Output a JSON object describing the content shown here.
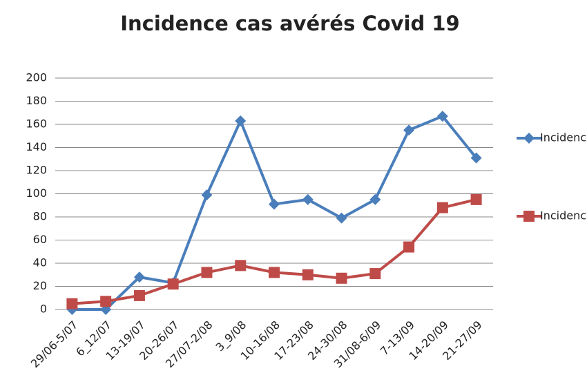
{
  "chart_data": {
    "type": "line",
    "title": "Incidence cas avérés Covid 19",
    "categories": [
      "29/06-5/07",
      "6_12/07",
      "13-19/07",
      "20-26/07",
      "27/07-2/08",
      "3_9/08",
      "10-16/08",
      "17-23/08",
      "24-30/08",
      "31/08-6/09",
      "7-13/09",
      "14-20/09",
      "21-27/09"
    ],
    "series": [
      {
        "name": "Incidence FMM",
        "color": "#4a7ebb",
        "marker": "diamond",
        "values": [
          0,
          0,
          28,
          23,
          99,
          163,
          91,
          95,
          79,
          95,
          155,
          167,
          131
        ]
      },
      {
        "name": "Incidence Sciensano",
        "color": "#be4b48",
        "marker": "square",
        "values": [
          5,
          7,
          12,
          22,
          32,
          38,
          32,
          30,
          27,
          31,
          54,
          88,
          95
        ]
      }
    ],
    "ylim": [
      0,
      200
    ],
    "yticks": [
      0,
      20,
      40,
      60,
      80,
      100,
      120,
      140,
      160,
      180,
      200
    ],
    "grid": true,
    "legend": "right"
  }
}
